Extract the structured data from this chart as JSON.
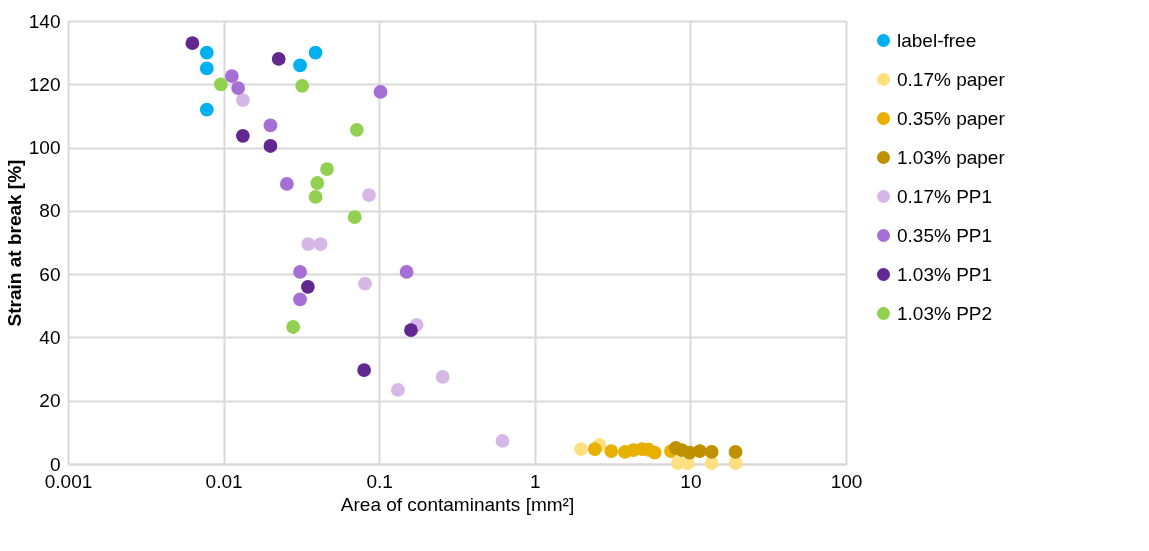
{
  "chart_data": {
    "type": "scatter",
    "xlabel": "Area of contaminants [mm²]",
    "ylabel": "Strain at break [%]",
    "log": "x",
    "xlim": [
      0.001,
      100
    ],
    "xticks": [
      0.001,
      0.01,
      0.1,
      1,
      10,
      100
    ],
    "ylim": [
      0,
      140
    ],
    "yticks": [
      0,
      20,
      40,
      60,
      80,
      100,
      120,
      140
    ],
    "grid": true,
    "legend": "right",
    "marker": "circle",
    "series": [
      {
        "name": "label-free",
        "color": "#00b0f0",
        "x": [
          0.0078,
          0.0078,
          0.0078,
          0.031,
          0.039
        ],
        "values": [
          130,
          125,
          112,
          126,
          130
        ]
      },
      {
        "name": "0.17% paper",
        "color": "#ffe080",
        "x": [
          1.98,
          2.6,
          8.3,
          9.6,
          13.7,
          19.5
        ],
        "values": [
          4.7,
          6,
          0.3,
          0.3,
          0.3,
          0.3
        ]
      },
      {
        "name": "0.35% paper",
        "color": "#e8b000",
        "x": [
          2.43,
          3.1,
          3.8,
          4.3,
          4.9,
          5.4,
          5.9,
          7.5
        ],
        "values": [
          4.7,
          4.1,
          3.8,
          4.4,
          4.7,
          4.5,
          3.6,
          4.1
        ]
      },
      {
        "name": "1.03% paper",
        "color": "#bf9000",
        "x": [
          8.06,
          8.8,
          9.9,
          11.5,
          13.7,
          19.5
        ],
        "values": [
          5.1,
          4.4,
          3.6,
          4.1,
          3.8,
          3.8
        ]
      },
      {
        "name": "0.17% PP1",
        "color": "#d5b8e8",
        "x": [
          0.0133,
          0.086,
          0.035,
          0.042,
          0.081,
          0.174,
          0.132,
          0.256,
          0.62
        ],
        "values": [
          115,
          85,
          69.5,
          69.5,
          57,
          44,
          23.4,
          27.5,
          7.3
        ]
      },
      {
        "name": "0.35% PP1",
        "color": "#a66fd5",
        "x": [
          0.0113,
          0.0124,
          0.102,
          0.02,
          0.0255,
          0.031,
          0.031,
          0.15
        ],
        "values": [
          122.6,
          118.8,
          117.6,
          107,
          88.5,
          60.7,
          52,
          60.7
        ]
      },
      {
        "name": "1.03% PP1",
        "color": "#622890",
        "x": [
          0.0063,
          0.0226,
          0.0133,
          0.02,
          0.0348,
          0.16,
          0.08
        ],
        "values": [
          133,
          128,
          103.7,
          100.5,
          56,
          42.3,
          29.7
        ]
      },
      {
        "name": "1.03% PP2",
        "color": "#92d050",
        "x": [
          0.0096,
          0.032,
          0.0718,
          0.0462,
          0.04,
          0.039,
          0.0696,
          0.028
        ],
        "values": [
          120,
          119.5,
          105.6,
          93.2,
          88.8,
          84.4,
          78,
          43.3
        ]
      }
    ]
  }
}
